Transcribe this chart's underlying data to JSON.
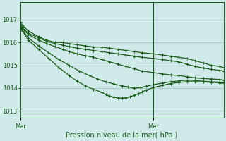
{
  "bg_color": "#d0eaea",
  "grid_color": "#99bbbb",
  "line_color": "#1a5c1a",
  "marker_color": "#1a5c1a",
  "xlabel": "Pression niveau de la mer( hPa )",
  "xlabel_color": "#1a5c1a",
  "tick_color": "#1a5c1a",
  "ylim": [
    1012.7,
    1017.75
  ],
  "yticks": [
    1013,
    1014,
    1015,
    1016,
    1017
  ],
  "xtick_labels": [
    "Mar",
    "Mer"
  ],
  "vline_x": 0.655,
  "series": [
    {
      "name": "s1_flat",
      "x": [
        0.0,
        0.01,
        0.04,
        0.09,
        0.13,
        0.17,
        0.21,
        0.24,
        0.28,
        0.32,
        0.36,
        0.4,
        0.44,
        0.48,
        0.52,
        0.56,
        0.6,
        0.655,
        0.7,
        0.74,
        0.78,
        0.82,
        0.86,
        0.9,
        0.94,
        0.98,
        1.0
      ],
      "y": [
        1016.9,
        1016.75,
        1016.5,
        1016.25,
        1016.1,
        1016.0,
        1016.0,
        1015.95,
        1015.9,
        1015.85,
        1015.8,
        1015.8,
        1015.75,
        1015.7,
        1015.65,
        1015.6,
        1015.55,
        1015.5,
        1015.45,
        1015.4,
        1015.35,
        1015.3,
        1015.2,
        1015.1,
        1015.0,
        1014.95,
        1014.9
      ]
    },
    {
      "name": "s2_flat",
      "x": [
        0.0,
        0.01,
        0.04,
        0.09,
        0.13,
        0.17,
        0.21,
        0.24,
        0.28,
        0.32,
        0.36,
        0.4,
        0.44,
        0.48,
        0.52,
        0.56,
        0.6,
        0.655,
        0.7,
        0.74,
        0.78,
        0.82,
        0.86,
        0.9,
        0.94,
        0.98,
        1.0
      ],
      "y": [
        1016.8,
        1016.65,
        1016.4,
        1016.2,
        1016.05,
        1015.95,
        1015.88,
        1015.82,
        1015.75,
        1015.7,
        1015.65,
        1015.6,
        1015.55,
        1015.5,
        1015.45,
        1015.4,
        1015.35,
        1015.3,
        1015.25,
        1015.2,
        1015.15,
        1015.05,
        1014.95,
        1014.88,
        1014.82,
        1014.78,
        1014.75
      ]
    },
    {
      "name": "s3_medium",
      "x": [
        0.0,
        0.01,
        0.04,
        0.09,
        0.13,
        0.17,
        0.21,
        0.24,
        0.28,
        0.32,
        0.36,
        0.4,
        0.44,
        0.48,
        0.52,
        0.56,
        0.6,
        0.655,
        0.7,
        0.74,
        0.78,
        0.82,
        0.86,
        0.9,
        0.94,
        0.98,
        1.0
      ],
      "y": [
        1016.75,
        1016.6,
        1016.35,
        1016.1,
        1015.95,
        1015.82,
        1015.7,
        1015.6,
        1015.5,
        1015.42,
        1015.35,
        1015.25,
        1015.15,
        1015.05,
        1014.95,
        1014.85,
        1014.75,
        1014.68,
        1014.62,
        1014.58,
        1014.55,
        1014.5,
        1014.45,
        1014.42,
        1014.4,
        1014.38,
        1014.35
      ]
    },
    {
      "name": "s4_deep",
      "x": [
        0.0,
        0.01,
        0.04,
        0.09,
        0.14,
        0.19,
        0.24,
        0.29,
        0.34,
        0.38,
        0.42,
        0.46,
        0.5,
        0.53,
        0.56,
        0.59,
        0.62,
        0.655,
        0.7,
        0.74,
        0.78,
        0.82,
        0.86,
        0.9,
        0.94,
        0.98,
        1.0
      ],
      "y": [
        1016.7,
        1016.55,
        1016.2,
        1015.85,
        1015.55,
        1015.25,
        1015.0,
        1014.75,
        1014.55,
        1014.4,
        1014.28,
        1014.18,
        1014.1,
        1014.05,
        1014.0,
        1014.02,
        1014.08,
        1014.15,
        1014.22,
        1014.28,
        1014.32,
        1014.35,
        1014.33,
        1014.3,
        1014.28,
        1014.26,
        1014.25
      ]
    },
    {
      "name": "s5_vdeep",
      "x": [
        0.0,
        0.01,
        0.04,
        0.09,
        0.14,
        0.19,
        0.24,
        0.28,
        0.32,
        0.36,
        0.4,
        0.42,
        0.44,
        0.46,
        0.48,
        0.5,
        0.52,
        0.54,
        0.56,
        0.58,
        0.6,
        0.62,
        0.655,
        0.7,
        0.74,
        0.78,
        0.82,
        0.86,
        0.9,
        0.94,
        0.98,
        1.0
      ],
      "y": [
        1016.65,
        1016.5,
        1016.1,
        1015.7,
        1015.3,
        1014.9,
        1014.55,
        1014.3,
        1014.1,
        1013.95,
        1013.82,
        1013.72,
        1013.65,
        1013.6,
        1013.57,
        1013.56,
        1013.58,
        1013.62,
        1013.68,
        1013.75,
        1013.83,
        1013.92,
        1014.02,
        1014.12,
        1014.2,
        1014.25,
        1014.28,
        1014.28,
        1014.27,
        1014.25,
        1014.23,
        1014.22
      ]
    }
  ]
}
